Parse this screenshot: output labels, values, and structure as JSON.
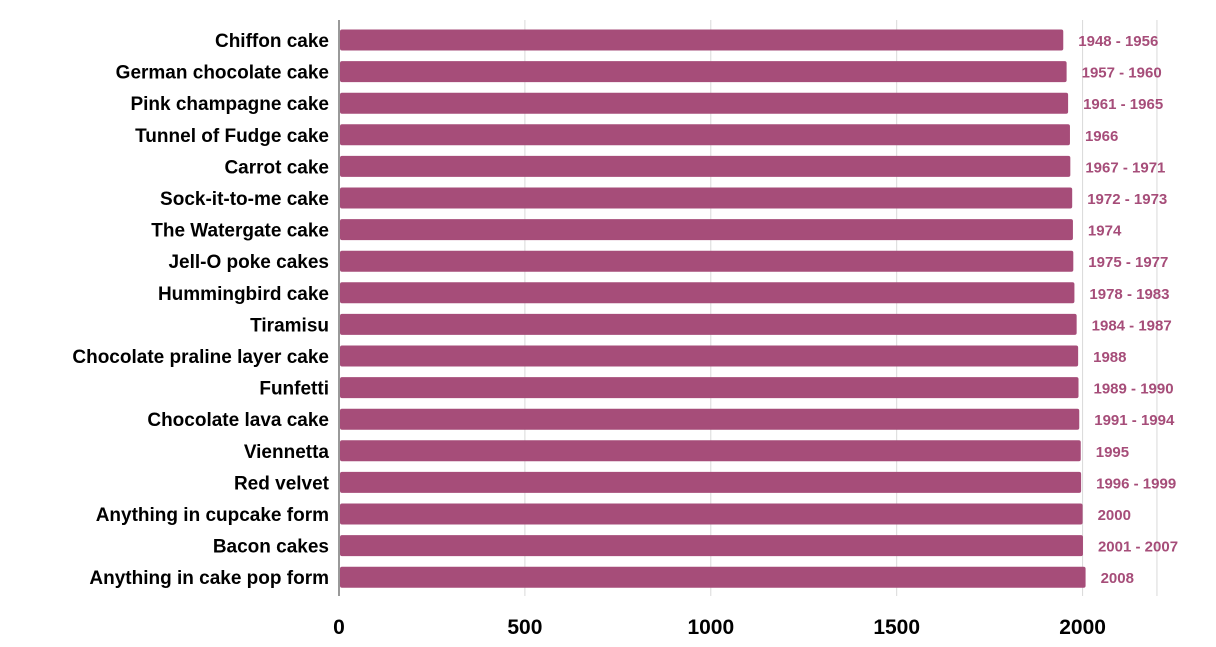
{
  "chart_data": {
    "type": "bar",
    "orientation": "horizontal",
    "title": "",
    "xlabel": "",
    "ylabel": "",
    "categories": [
      "Chiffon cake",
      "German chocolate cake",
      "Pink champagne cake",
      "Tunnel of Fudge cake",
      "Carrot cake",
      "Sock-it-to-me cake",
      "The Watergate cake",
      "Jell-O poke cakes",
      "Hummingbird cake",
      "Tiramisu",
      "Chocolate praline layer cake",
      "Funfetti",
      "Chocolate lava cake",
      "Viennetta",
      "Red velvet",
      "Anything in cupcake form",
      "Bacon cakes",
      "Anything in cake pop form"
    ],
    "values": [
      1948,
      1957,
      1961,
      1966,
      1967,
      1972,
      1974,
      1975,
      1978,
      1984,
      1988,
      1989,
      1991,
      1995,
      1996,
      2000,
      2001,
      2008
    ],
    "data_labels": [
      "1948 - 1956",
      "1957 - 1960",
      "1961 - 1965",
      "1966",
      "1967 - 1971",
      "1972 - 1973",
      "1974",
      "1975 - 1977",
      "1978 - 1983",
      "1984 - 1987",
      "1988",
      "1989 - 1990",
      "1991 - 1994",
      "1995",
      "1996 - 1999",
      "2000",
      "2001 - 2007",
      "2008"
    ],
    "xlim": [
      0,
      2200
    ],
    "xticks": [
      0,
      500,
      1000,
      1500,
      2000
    ],
    "xtick_labels": [
      "0",
      "500",
      "1000",
      "1500",
      "2000"
    ],
    "grid": true,
    "legend": "none",
    "bar_color": "#a64d79"
  }
}
